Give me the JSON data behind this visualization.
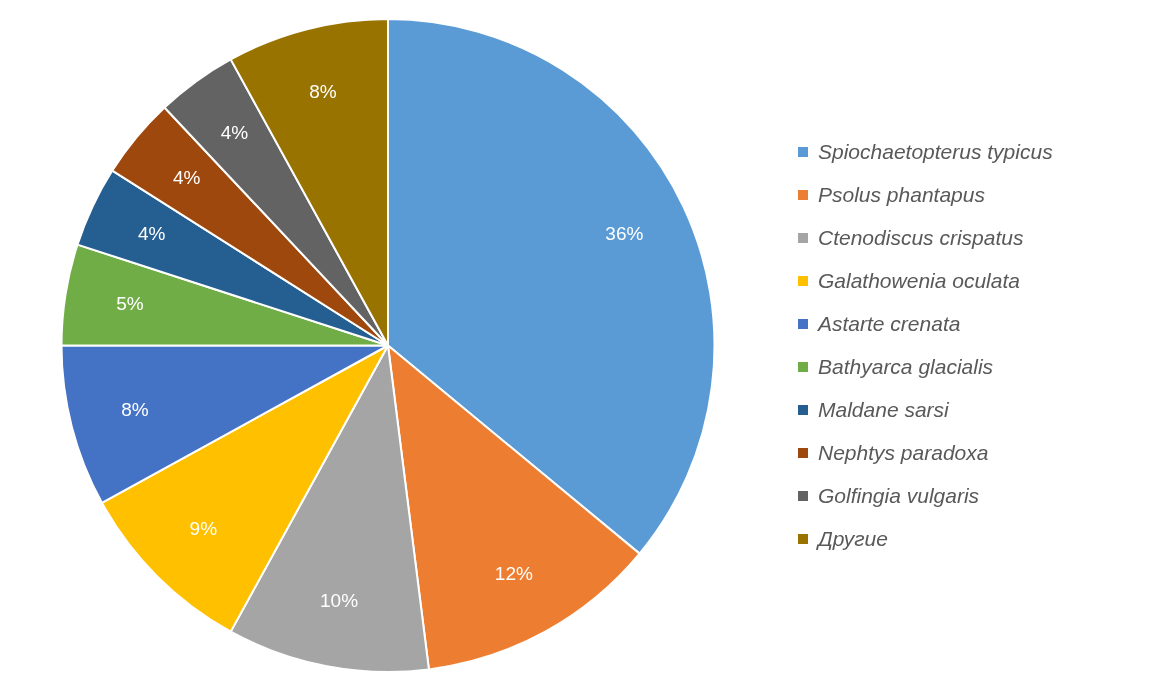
{
  "chart_data": {
    "type": "pie",
    "categories": [
      "Spiochaetopterus typicus",
      "Psolus phantapus",
      "Ctenodiscus crispatus",
      "Galathowenia oculata",
      "Astarte crenata",
      "Bathyarca glacialis",
      "Maldane sarsi",
      "Nephtys paradoxa",
      "Golfingia vulgaris",
      "Другие"
    ],
    "values": [
      36,
      12,
      10,
      9,
      8,
      5,
      4,
      4,
      4,
      8
    ],
    "value_labels": [
      "36%",
      "12%",
      "10%",
      "9%",
      "8%",
      "5%",
      "4%",
      "4%",
      "4%",
      "8%"
    ],
    "colors": [
      "#5b9bd5",
      "#ed7d31",
      "#a5a5a5",
      "#ffc000",
      "#4472c4",
      "#70ad47",
      "#255e91",
      "#9e480e",
      "#636363",
      "#997300"
    ],
    "legend": "right"
  }
}
